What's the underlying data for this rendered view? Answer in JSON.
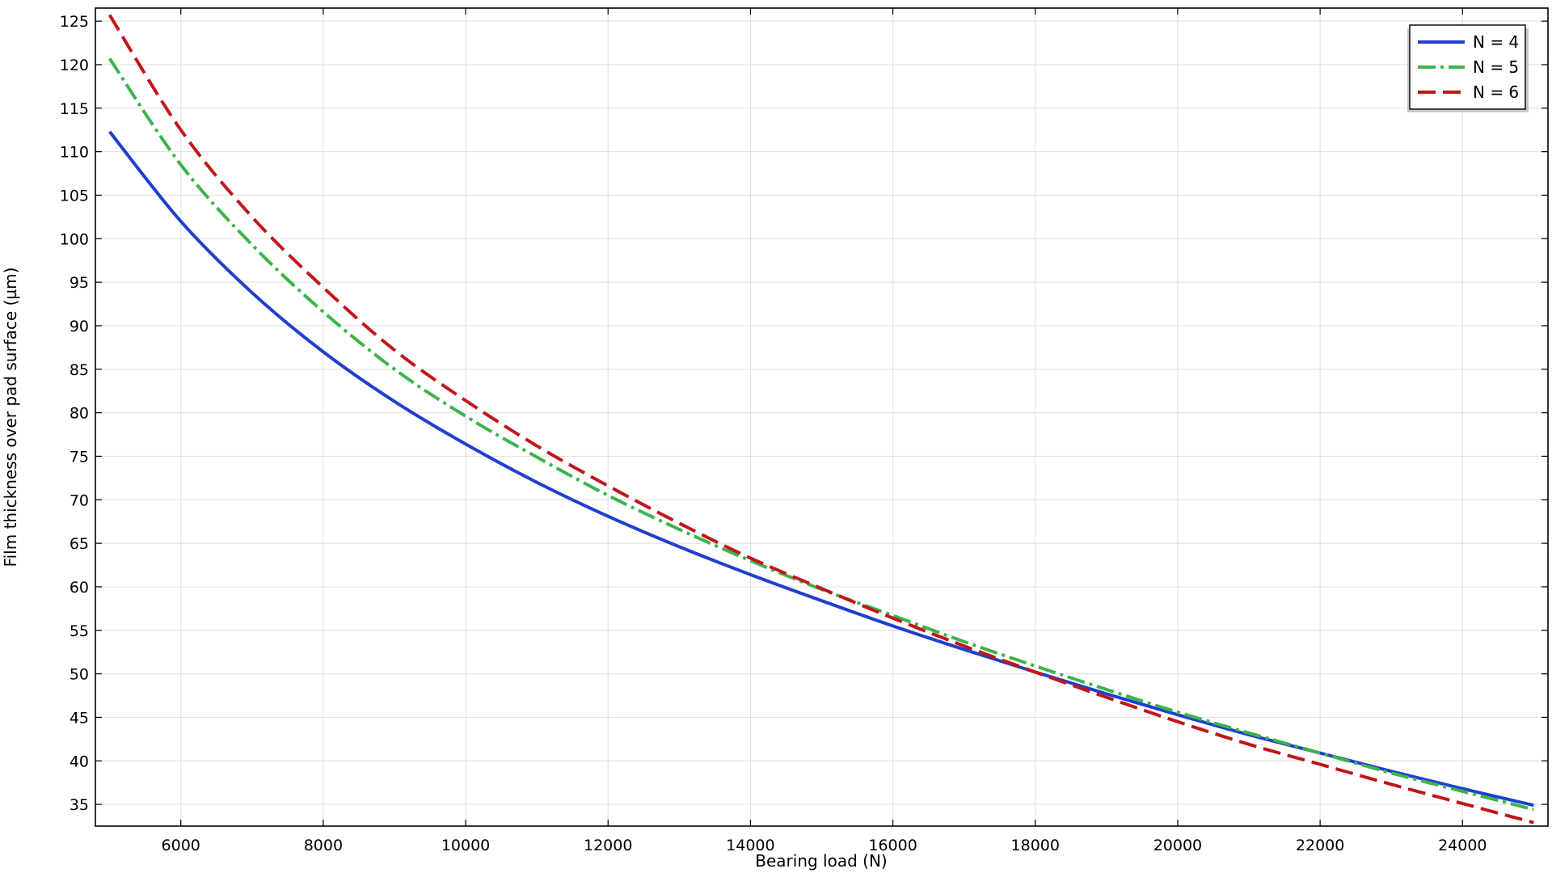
{
  "chart_data": {
    "type": "line",
    "title": "",
    "xlabel": "Bearing load (N)",
    "ylabel": "Film thickness over pad surface (µm)",
    "xlim": [
      4800,
      25200
    ],
    "ylim": [
      32.5,
      126.5
    ],
    "xticks": [
      6000,
      8000,
      10000,
      12000,
      14000,
      16000,
      18000,
      20000,
      22000,
      24000
    ],
    "yticks": [
      35,
      40,
      45,
      50,
      55,
      60,
      65,
      70,
      75,
      80,
      85,
      90,
      95,
      100,
      105,
      110,
      115,
      120,
      125
    ],
    "grid": true,
    "legend_position": "top-right",
    "x": [
      5000,
      6000,
      7000,
      8000,
      9000,
      10000,
      11000,
      12000,
      13000,
      14000,
      15000,
      16000,
      17000,
      18000,
      19000,
      20000,
      21000,
      22000,
      23000,
      24000,
      25000
    ],
    "series": [
      {
        "name": "N = 4",
        "color": "#1f3fcf",
        "dash": "solid",
        "values": [
          112.3,
          102.0,
          93.8,
          87.0,
          81.3,
          76.4,
          72.0,
          68.1,
          64.6,
          61.4,
          58.4,
          55.5,
          52.8,
          50.2,
          47.7,
          45.3,
          43.0,
          40.9,
          38.8,
          36.8,
          34.9
        ]
      },
      {
        "name": "N = 5",
        "color": "#3cb44b",
        "dash": "dashdot",
        "values": [
          120.7,
          108.5,
          99.3,
          91.6,
          85.0,
          79.6,
          74.9,
          70.5,
          66.6,
          63.0,
          59.7,
          56.7,
          53.7,
          50.9,
          48.2,
          45.6,
          43.2,
          40.9,
          38.6,
          36.5,
          34.4
        ]
      },
      {
        "name": "N = 6",
        "color": "#c0161b",
        "dash": "dashed",
        "values": [
          125.7,
          112.5,
          102.5,
          94.4,
          87.2,
          81.4,
          76.2,
          71.6,
          67.3,
          63.3,
          59.8,
          56.4,
          53.2,
          50.2,
          47.3,
          44.5,
          41.9,
          39.6,
          37.3,
          35.1,
          32.9
        ]
      }
    ]
  }
}
